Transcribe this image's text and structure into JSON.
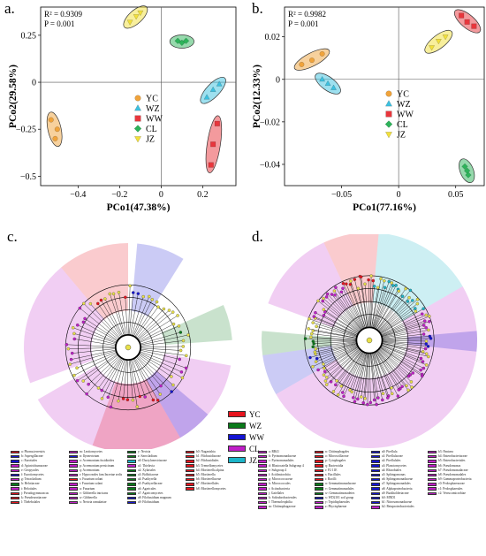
{
  "panels": {
    "a": {
      "label": "a.",
      "stats": [
        "R² = 0.9309",
        "P = 0.001"
      ]
    },
    "b": {
      "label": "b.",
      "stats": [
        "R² = 0.9982",
        "P = 0.001"
      ]
    },
    "c": {
      "label": "c."
    },
    "d": {
      "label": "d."
    }
  },
  "groups": [
    {
      "name": "YC",
      "color": "#f0a33b",
      "marker": "circle"
    },
    {
      "name": "WZ",
      "color": "#3cc1e0",
      "marker": "triangle"
    },
    {
      "name": "WW",
      "color": "#e8363c",
      "marker": "square"
    },
    {
      "name": "CL",
      "color": "#2db35a",
      "marker": "diamond"
    },
    {
      "name": "JZ",
      "color": "#f2e03a",
      "marker": "triangle-down"
    }
  ],
  "lefse_colors": [
    {
      "name": "YC",
      "color": "#e8141e"
    },
    {
      "name": "WZ",
      "color": "#0a7a1a"
    },
    {
      "name": "WW",
      "color": "#1414d2"
    },
    {
      "name": "CL",
      "color": "#c01ec8"
    },
    {
      "name": "JZ",
      "color": "#1cb4c8"
    }
  ],
  "chart_data": [
    {
      "type": "scatter",
      "panel": "a",
      "xlabel": "PCo1(47.38%)",
      "ylabel": "PCo2(29.58%)",
      "xlim": [
        -0.58,
        0.36
      ],
      "ylim": [
        -0.55,
        0.4
      ],
      "xticks": [
        -0.4,
        -0.2,
        0.0,
        0.2
      ],
      "xtick_labels": [
        "−0.4",
        "−0.2",
        "0",
        "0.2"
      ],
      "yticks": [
        -0.5,
        -0.25,
        0,
        0.25
      ],
      "ytick_labels": [
        "−0.5",
        "−0.25",
        "0",
        "0.25"
      ],
      "series": [
        {
          "name": "YC",
          "points": [
            [
              -0.53,
              -0.2
            ],
            [
              -0.5,
              -0.25
            ],
            [
              -0.51,
              -0.3
            ]
          ]
        },
        {
          "name": "WZ",
          "points": [
            [
              0.22,
              -0.08
            ],
            [
              0.25,
              -0.04
            ],
            [
              0.28,
              -0.01
            ]
          ]
        },
        {
          "name": "WW",
          "points": [
            [
              0.27,
              -0.22
            ],
            [
              0.25,
              -0.33
            ],
            [
              0.24,
              -0.44
            ]
          ]
        },
        {
          "name": "CL",
          "points": [
            [
              0.08,
              0.22
            ],
            [
              0.1,
              0.21
            ],
            [
              0.12,
              0.22
            ]
          ]
        },
        {
          "name": "JZ",
          "points": [
            [
              -0.15,
              0.32
            ],
            [
              -0.12,
              0.35
            ],
            [
              -0.1,
              0.37
            ]
          ]
        }
      ]
    },
    {
      "type": "scatter",
      "panel": "b",
      "xlabel": "PCo1(77.16%)",
      "ylabel": "PCo2(12.33%)",
      "xlim": [
        -0.1,
        0.075
      ],
      "ylim": [
        -0.05,
        0.034
      ],
      "xticks": [
        -0.05,
        0,
        0.05
      ],
      "xtick_labels": [
        "−0.05",
        "0",
        "0.05"
      ],
      "yticks": [
        -0.04,
        -0.02,
        0,
        0.02
      ],
      "ytick_labels": [
        "−0.04",
        "−0.02",
        "0",
        "0.02"
      ],
      "series": [
        {
          "name": "YC",
          "points": [
            [
              -0.085,
              0.007
            ],
            [
              -0.076,
              0.009
            ],
            [
              -0.067,
              0.012
            ]
          ]
        },
        {
          "name": "WZ",
          "points": [
            [
              -0.067,
              -0.0
            ],
            [
              -0.062,
              -0.002
            ],
            [
              -0.057,
              -0.004
            ]
          ]
        },
        {
          "name": "WW",
          "points": [
            [
              0.055,
              0.03
            ],
            [
              0.06,
              0.027
            ],
            [
              0.066,
              0.025
            ]
          ]
        },
        {
          "name": "CL",
          "points": [
            [
              0.058,
              -0.041
            ],
            [
              0.06,
              -0.043
            ],
            [
              0.061,
              -0.045
            ]
          ]
        },
        {
          "name": "JZ",
          "points": [
            [
              0.029,
              0.015
            ],
            [
              0.035,
              0.018
            ],
            [
              0.041,
              0.02
            ]
          ]
        }
      ]
    }
  ],
  "cladogram_c": {
    "sectors": [
      {
        "group": "CL",
        "start": 100,
        "end": 205
      },
      {
        "group": "CL",
        "start": 250,
        "end": 320
      },
      {
        "group": "YC",
        "start": 320,
        "end": 360
      },
      {
        "group": "WW",
        "start": 5,
        "end": 32
      },
      {
        "group": "WZ",
        "start": 66,
        "end": 86
      },
      {
        "group": "YC",
        "start": 150,
        "end": 200
      },
      {
        "group": "CL",
        "start": 205,
        "end": 240
      },
      {
        "group": "WW",
        "start": 130,
        "end": 150
      }
    ]
  },
  "cladogram_d": {
    "sectors": [
      {
        "group": "YC",
        "start": 335,
        "end": 5
      },
      {
        "group": "JZ",
        "start": 5,
        "end": 60
      },
      {
        "group": "CL",
        "start": 60,
        "end": 110
      },
      {
        "group": "WW",
        "start": 85,
        "end": 96
      },
      {
        "group": "CL",
        "start": 110,
        "end": 240
      },
      {
        "group": "WW",
        "start": 240,
        "end": 262
      },
      {
        "group": "WZ",
        "start": 262,
        "end": 275
      },
      {
        "group": "CL",
        "start": 290,
        "end": 335
      }
    ]
  },
  "taxa_c": [
    [
      "a: Phoma.terrestris",
      "YC"
    ],
    [
      "b: Aspergillaceae",
      "WW"
    ],
    [
      "c: Eurotiales",
      "WW"
    ],
    [
      "d: Apiotrichumaceae",
      "CL"
    ],
    [
      "e: Geopyrales",
      "CL"
    ],
    [
      "f: Eurotiomycetes",
      "WW"
    ],
    [
      "g: Tetracladium",
      "CL"
    ],
    [
      "h: Helotiaceae",
      "WZ"
    ],
    [
      "i: Helotiales",
      "CL"
    ],
    [
      "j: Pseudogymnoascus",
      "YC"
    ],
    [
      "k: Pseudeurotiaceae",
      "YC"
    ],
    [
      "l: Thelebolales",
      "YC"
    ],
    [
      "m: Leotiomycetes",
      "CL"
    ],
    [
      "n: Ilyonectrium",
      "WW"
    ],
    [
      "o: Acremonium fusidioides",
      "CL"
    ],
    [
      "p: Acremonium persicinum",
      "CL"
    ],
    [
      "q: Acremonium",
      "CL"
    ],
    [
      "r: Hypocreales fam Incertae sedis",
      "CL"
    ],
    [
      "s: Fusarium solani",
      "YC"
    ],
    [
      "t: Fusarium solani",
      "CL"
    ],
    [
      "u: Fusarium",
      "CL"
    ],
    [
      "v: Gibberella intricans",
      "CL"
    ],
    [
      "w: Gibberella",
      "CL"
    ],
    [
      "x: Nectria ramulariae",
      "CL"
    ],
    [
      "y: Nectria",
      "WZ"
    ],
    [
      "z: Sarocladium",
      "WZ"
    ],
    [
      "a0: Dactylonectriaceae",
      "JZ"
    ],
    [
      "a1: Thielavia",
      "CL"
    ],
    [
      "a2: Xylariales",
      "WZ"
    ],
    [
      "a3: Bolbitiaceae",
      "WZ"
    ],
    [
      "a4: Psathyrella",
      "WZ"
    ],
    [
      "a5: Psathyrellaceae",
      "WZ"
    ],
    [
      "a6: Agaricales",
      "WZ"
    ],
    [
      "a7: Agaricomycetes",
      "WZ"
    ],
    [
      "a8: Filobasidium magnum",
      "WW"
    ],
    [
      "a9: Filobasidium",
      "WW"
    ],
    [
      "b0: Naganishia",
      "YC"
    ],
    [
      "b1: Filobasidiaceae",
      "YC"
    ],
    [
      "b2: Filobasidiales",
      "YC"
    ],
    [
      "b3: Tremellomycetes",
      "YC"
    ],
    [
      "b4: Mortierella alpina",
      "YC"
    ],
    [
      "b5: Mortierella",
      "YC"
    ],
    [
      "b6: Mortierellaceae",
      "YC"
    ],
    [
      "b7: Mortierellales",
      "YC"
    ],
    [
      "b8: Mortierellomycetes",
      "YC"
    ]
  ],
  "taxa_d": [
    [
      "a: RB41",
      "CL"
    ],
    [
      "b: Pyrinomonadaceae",
      "CL"
    ],
    [
      "c: Pyrinomonadales",
      "CL"
    ],
    [
      "d: Blastocatella Subgroup 4",
      "CL"
    ],
    [
      "e: Subgroup 4",
      "CL"
    ],
    [
      "f: Acidimicrobiia",
      "CL"
    ],
    [
      "g: Micrococcaceae",
      "CL"
    ],
    [
      "h: Micrococcales",
      "CL"
    ],
    [
      "i: Actinobacteria",
      "CL"
    ],
    [
      "j: Gaiellales",
      "CL"
    ],
    [
      "k: Solirubrobacterales",
      "CL"
    ],
    [
      "l: Thermoleophilia",
      "CL"
    ],
    [
      "m: Chitinophagaceae",
      "CL"
    ],
    [
      "n: Chitinophagales",
      "YC"
    ],
    [
      "o: Microscillaceae",
      "YC"
    ],
    [
      "p: Cytophagales",
      "YC"
    ],
    [
      "q: Bacteroidia",
      "YC"
    ],
    [
      "r: P2 11E",
      "YC"
    ],
    [
      "s: Bacillales",
      "YC"
    ],
    [
      "t: Bacilli",
      "YC"
    ],
    [
      "u: Gemmatimonadaceae",
      "WZ"
    ],
    [
      "v: Gemmatimonadales",
      "WZ"
    ],
    [
      "w: Gemmatimonadetes",
      "WZ"
    ],
    [
      "x: WD2101 soil group",
      "WW"
    ],
    [
      "y: Tepidisphaerales",
      "CL"
    ],
    [
      "z: Phycisphaerae",
      "CL"
    ],
    [
      "a0: Pirellula",
      "WW"
    ],
    [
      "a1: Pirellulaceae",
      "WW"
    ],
    [
      "a2: Pirellulales",
      "WW"
    ],
    [
      "a3: Planctomycetes",
      "WW"
    ],
    [
      "a4: Rhizobiales",
      "WW"
    ],
    [
      "a5: Sphingomonas",
      "WW"
    ],
    [
      "a6: Sphingomonadaceae",
      "WW"
    ],
    [
      "a7: Sphingomonadales",
      "WW"
    ],
    [
      "a8: Alphaproteobacteria",
      "WW"
    ],
    [
      "a9: Burkholderiaceae",
      "WW"
    ],
    [
      "b0: MND1",
      "WW"
    ],
    [
      "b1: Nitrosomonadaceae",
      "WW"
    ],
    [
      "b2: Betaproteobacteriales",
      "CL"
    ],
    [
      "b3: Pantoea",
      "CL"
    ],
    [
      "b4: Enterobacteriaceae",
      "CL"
    ],
    [
      "b5: Enterobacteriales",
      "CL"
    ],
    [
      "b6: Pseudomonas",
      "CL"
    ],
    [
      "b7: Pseudomonadaceae",
      "CL"
    ],
    [
      "b8: Pseudomonadales",
      "CL"
    ],
    [
      "b9: Gammaproteobacteria",
      "CL"
    ],
    [
      "c0: Pedosphaeraceae",
      "CL"
    ],
    [
      "c1: Pedosphaerales",
      "CL"
    ],
    [
      "c2: Verrucomicrobiae",
      "CL"
    ]
  ]
}
